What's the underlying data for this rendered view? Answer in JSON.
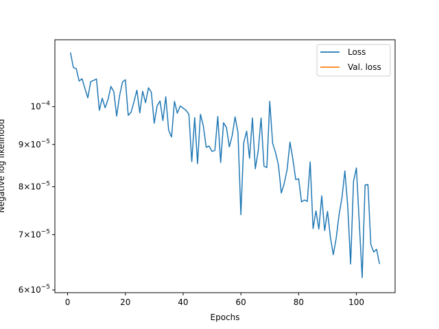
{
  "chart_data": {
    "type": "line",
    "title": "",
    "xlabel": "Epochs",
    "ylabel": "Negative log likelihood",
    "yscale": "log",
    "xlim": [
      -4.4,
      113.4
    ],
    "ylim": [
      5.955e-05,
      0.0001205
    ],
    "x_ticks": [
      {
        "value": 0,
        "label": "0"
      },
      {
        "value": 20,
        "label": "20"
      },
      {
        "value": 40,
        "label": "40"
      },
      {
        "value": 60,
        "label": "60"
      },
      {
        "value": 80,
        "label": "80"
      },
      {
        "value": 100,
        "label": "100"
      }
    ],
    "y_ticks": [
      {
        "value": 6e-05,
        "mantissa": "6",
        "times": "×",
        "base": "10",
        "exp": "−5"
      },
      {
        "value": 7e-05,
        "mantissa": "7",
        "times": "×",
        "base": "10",
        "exp": "−5"
      },
      {
        "value": 8e-05,
        "mantissa": "8",
        "times": "×",
        "base": "10",
        "exp": "−5"
      },
      {
        "value": 9e-05,
        "mantissa": "9",
        "times": "×",
        "base": "10",
        "exp": "−5"
      },
      {
        "value": 0.0001,
        "mantissa": "",
        "times": "",
        "base": "10",
        "exp": "−4"
      }
    ],
    "grid": false,
    "legend_position": "top-right",
    "series": [
      {
        "name": "Loss",
        "color": "#1f77b4",
        "x": [
          1,
          2,
          3,
          4,
          5,
          6,
          7,
          8,
          9,
          10,
          11,
          12,
          13,
          14,
          15,
          16,
          17,
          18,
          19,
          20,
          21,
          22,
          23,
          24,
          25,
          26,
          27,
          28,
          29,
          30,
          31,
          32,
          33,
          34,
          35,
          36,
          37,
          38,
          39,
          40,
          41,
          42,
          43,
          44,
          45,
          46,
          47,
          48,
          49,
          50,
          51,
          52,
          53,
          54,
          55,
          56,
          57,
          58,
          59,
          60,
          61,
          62,
          63,
          64,
          65,
          66,
          67,
          68,
          69,
          70,
          71,
          72,
          73,
          74,
          75,
          76,
          77,
          78,
          79,
          80,
          81,
          82,
          83,
          84,
          85,
          86,
          87,
          88,
          89,
          90,
          91,
          92,
          93,
          94,
          95,
          96,
          97,
          98,
          99,
          100,
          101,
          102,
          103,
          104,
          105,
          106,
          107,
          108
        ],
        "y": [
          0.0001163,
          0.0001115,
          0.0001112,
          0.0001074,
          0.0001081,
          0.0001052,
          0.0001025,
          0.0001072,
          0.0001076,
          0.000108,
          9.9e-05,
          0.0001024,
          9.97e-05,
          0.000102,
          0.0001058,
          0.0001043,
          9.74e-05,
          0.0001031,
          0.0001071,
          0.0001078,
          9.76e-05,
          9.85e-05,
          0.0001014,
          0.0001047,
          9.83e-05,
          0.0001044,
          0.0001011,
          0.0001054,
          0.0001041,
          9.55e-05,
          0.0001002,
          0.0001016,
          9.62e-05,
          0.0001028,
          9.36e-05,
          9.19e-05,
          0.0001015,
          9.82e-05,
          0.0001002,
          9.96e-05,
          9.9e-05,
          9.79e-05,
          8.58e-05,
          9.7e-05,
          8.53e-05,
          9.79e-05,
          9.48e-05,
          8.93e-05,
          8.96e-05,
          8.83e-05,
          8.85e-05,
          9.73e-05,
          8.56e-05,
          9.56e-05,
          9.44e-05,
          8.94e-05,
          9.23e-05,
          9.72e-05,
          9.3e-05,
          7.4e-05,
          9.05e-05,
          9.34e-05,
          8.66e-05,
          9.69e-05,
          8.41e-05,
          8.84e-05,
          9.69e-05,
          8.47e-05,
          8.44e-05,
          0.0001015,
          9.03e-05,
          8.8e-05,
          8.5e-05,
          7.86e-05,
          8.07e-05,
          8.39e-05,
          9.06e-05,
          8.64e-05,
          8.16e-05,
          8.18e-05,
          7.67e-05,
          7.71e-05,
          7.68e-05,
          8.57e-05,
          7.12e-05,
          7.48e-05,
          7.11e-05,
          7.8e-05,
          7.08e-05,
          7.47e-05,
          6.95e-05,
          6.62e-05,
          6.93e-05,
          7.4e-05,
          7.76e-05,
          8.36e-05,
          7.58e-05,
          6.45e-05,
          8.12e-05,
          8.43e-05,
          7.23e-05,
          6.21e-05,
          8.04e-05,
          8.05e-05,
          6.81e-05,
          6.67e-05,
          6.72e-05,
          6.45e-05
        ]
      },
      {
        "name": "Val. loss",
        "color": "#ff7f0e",
        "x": [],
        "y": []
      }
    ]
  }
}
